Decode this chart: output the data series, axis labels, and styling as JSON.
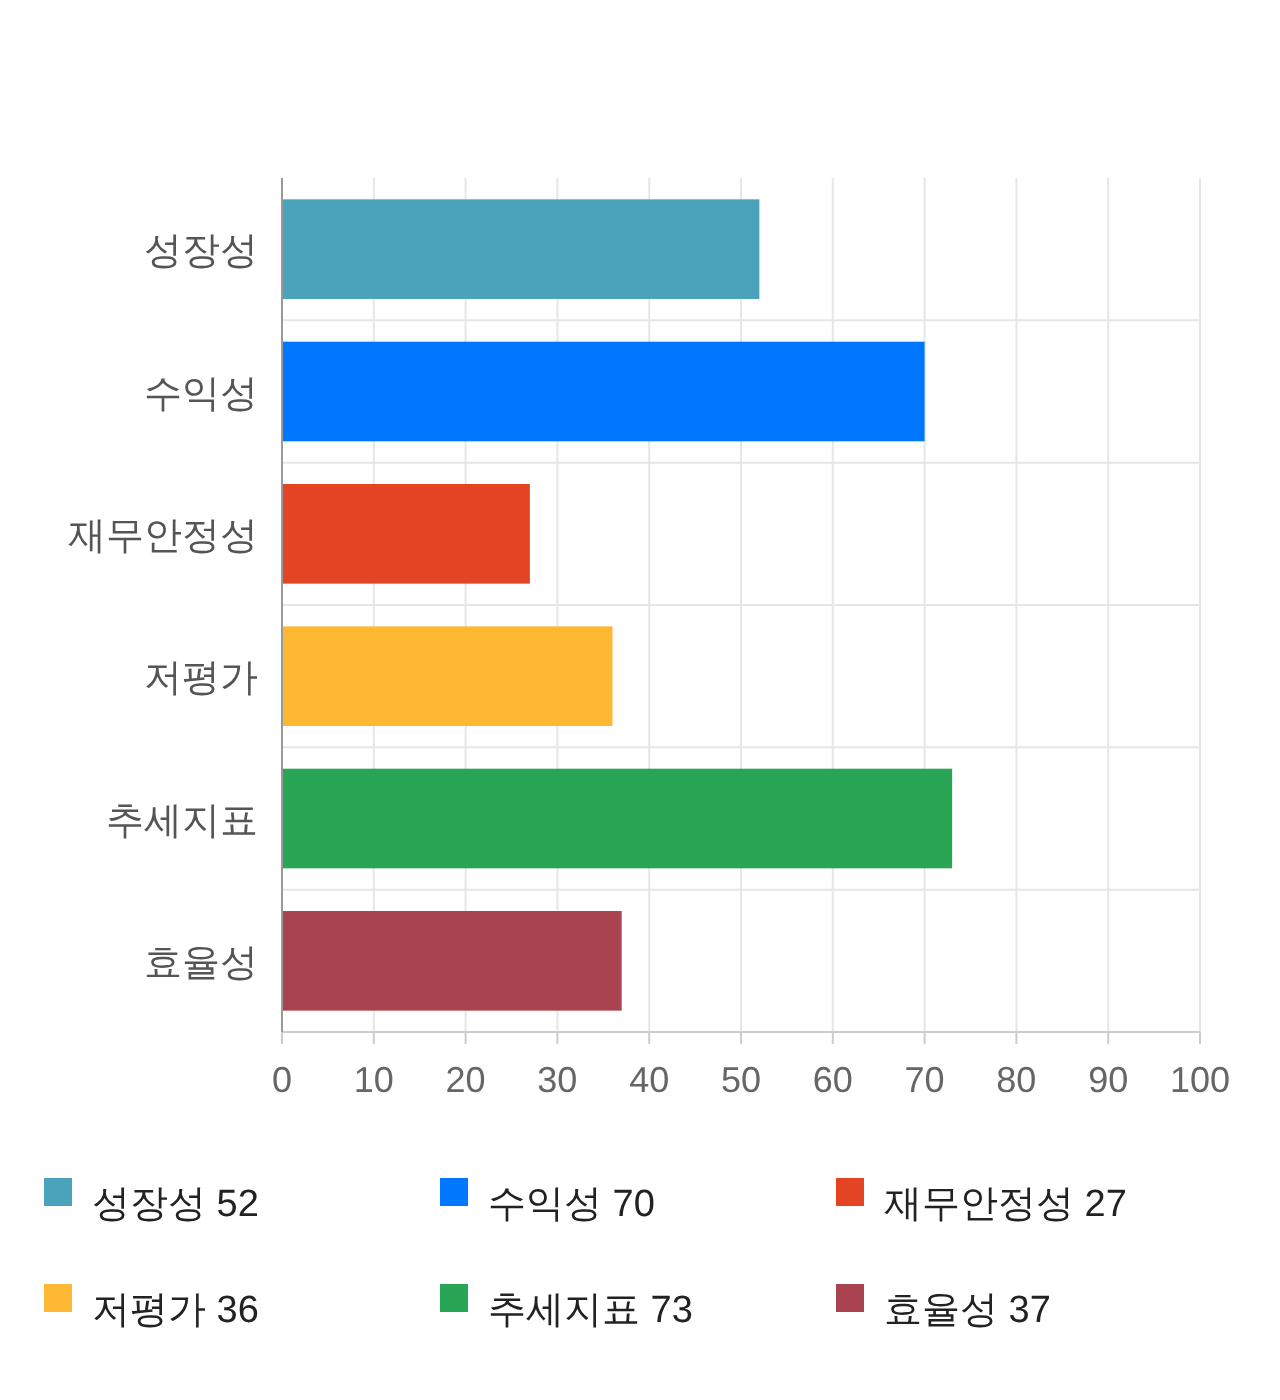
{
  "chart_data": {
    "type": "bar",
    "orientation": "horizontal",
    "categories": [
      "성장성",
      "수익성",
      "재무안정성",
      "저평가",
      "추세지표",
      "효율성"
    ],
    "values": [
      52,
      70,
      27,
      36,
      73,
      37
    ],
    "colors": [
      "#4aa3ba",
      "#0077ff",
      "#e34424",
      "#ffb833",
      "#28a656",
      "#a8434f"
    ],
    "value_labels": [
      "52",
      "70",
      "27",
      "36",
      "73",
      "37"
    ],
    "xlim": [
      0,
      100
    ],
    "xticks": [
      0,
      10,
      20,
      30,
      40,
      50,
      60,
      70,
      80,
      90,
      100
    ],
    "grid": true
  }
}
